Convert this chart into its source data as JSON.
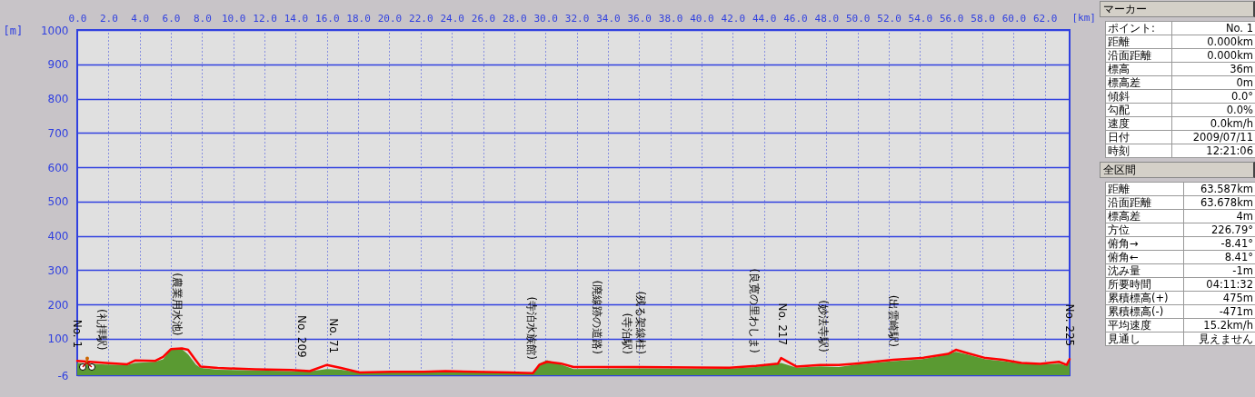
{
  "chart_data": [
    {
      "type": "area",
      "xlabel": "[km]",
      "ylabel": "[m]",
      "xlim": [
        0,
        63.587
      ],
      "ylim": [
        -6,
        1000
      ],
      "xticks": [
        {
          "value": 0,
          "label": "0.0"
        },
        {
          "value": 2,
          "label": "2.0"
        },
        {
          "value": 4,
          "label": "4.0"
        },
        {
          "value": 6,
          "label": "6.0"
        },
        {
          "value": 8,
          "label": "8.0"
        },
        {
          "value": 10,
          "label": "10.0"
        },
        {
          "value": 12,
          "label": "12.0"
        },
        {
          "value": 14,
          "label": "14.0"
        },
        {
          "value": 16,
          "label": "16.0"
        },
        {
          "value": 18,
          "label": "18.0"
        },
        {
          "value": 20,
          "label": "20.0"
        },
        {
          "value": 22,
          "label": "22.0"
        },
        {
          "value": 24,
          "label": "24.0"
        },
        {
          "value": 26,
          "label": "26.0"
        },
        {
          "value": 28,
          "label": "28.0"
        },
        {
          "value": 30,
          "label": "30.0"
        },
        {
          "value": 32,
          "label": "32.0"
        },
        {
          "value": 34,
          "label": "34.0"
        },
        {
          "value": 36,
          "label": "36.0"
        },
        {
          "value": 38,
          "label": "38.0"
        },
        {
          "value": 40,
          "label": "40.0"
        },
        {
          "value": 42,
          "label": "42.0"
        },
        {
          "value": 44,
          "label": "44.0"
        },
        {
          "value": 46,
          "label": "46.0"
        },
        {
          "value": 48,
          "label": "48.0"
        },
        {
          "value": 50,
          "label": "50.0"
        },
        {
          "value": 52,
          "label": "52.0"
        },
        {
          "value": 54,
          "label": "54.0"
        },
        {
          "value": 56,
          "label": "56.0"
        },
        {
          "value": 58,
          "label": "58.0"
        },
        {
          "value": 60,
          "label": "60.0"
        },
        {
          "value": 62,
          "label": "62.0"
        }
      ],
      "yticks": [
        -6,
        100,
        200,
        300,
        400,
        500,
        600,
        700,
        800,
        900,
        1000
      ],
      "grid": true,
      "x": [
        0,
        1.8,
        3.2,
        3.7,
        5.0,
        5.5,
        6.0,
        6.7,
        7.1,
        7.6,
        7.9,
        9.0,
        11.4,
        13.7,
        14.9,
        16.0,
        16.9,
        18.1,
        20.1,
        22.2,
        23.6,
        25.4,
        27.7,
        29.2,
        29.6,
        30.1,
        31.0,
        31.8,
        35.9,
        41.8,
        43.5,
        44.9,
        45.1,
        46.1,
        47.6,
        48.8,
        49.9,
        52.3,
        54.1,
        55.8,
        56.3,
        57.0,
        58.2,
        59.3,
        60.5,
        61.7,
        62.9,
        63.4,
        63.587
      ],
      "series": [
        {
          "type": "area",
          "color": "#5a9a32",
          "values": [
            30,
            25,
            24,
            30,
            33,
            40,
            70,
            70,
            55,
            25,
            15,
            10,
            8,
            6,
            5,
            12,
            10,
            2,
            3,
            4,
            5,
            3,
            2,
            0,
            28,
            38,
            25,
            12,
            14,
            13,
            18,
            28,
            30,
            16,
            20,
            18,
            25,
            35,
            40,
            55,
            62,
            55,
            40,
            35,
            28,
            25,
            28,
            22,
            38
          ]
        },
        {
          "type": "line",
          "color": "#ff0000",
          "values": [
            36,
            30,
            26,
            37,
            36,
            47,
            70,
            72,
            68,
            37,
            19,
            15,
            11,
            9,
            6,
            24,
            15,
            2,
            4,
            4,
            6,
            4,
            2,
            0,
            24,
            33,
            28,
            18,
            18,
            16,
            21,
            28,
            44,
            19,
            24,
            24,
            28,
            39,
            44,
            56,
            68,
            59,
            44,
            39,
            30,
            27,
            33,
            24,
            41
          ]
        }
      ],
      "annotations": [
        {
          "text": "No. 1",
          "x": 0,
          "y": 36
        },
        {
          "text": "(礼拝駅)",
          "x": 1.6,
          "y": 30
        },
        {
          "text": "(農業用水池)",
          "x": 6.4,
          "y": 72
        },
        {
          "text": "No. 209",
          "x": 14.4,
          "y": 8
        },
        {
          "text": "No. 71",
          "x": 16.4,
          "y": 20
        },
        {
          "text": "(寺泊水族館)",
          "x": 29.1,
          "y": 2
        },
        {
          "text": "(廃線跡の道路)",
          "x": 33.3,
          "y": 18
        },
        {
          "text": "(寺泊駅)",
          "x": 35.2,
          "y": 18
        },
        {
          "text": "(残る架線柱)",
          "x": 36.1,
          "y": 18
        },
        {
          "text": "(良寛の里わしま)",
          "x": 43.4,
          "y": 21
        },
        {
          "text": "No. 217",
          "x": 45.2,
          "y": 44
        },
        {
          "text": "(妙法寺駅)",
          "x": 47.8,
          "y": 24
        },
        {
          "text": "(出雲崎駅)",
          "x": 52.3,
          "y": 39
        },
        {
          "text": "No. 225",
          "x": 63.587,
          "y": 41
        }
      ]
    },
    {
      "type": "other",
      "title": "マーカー",
      "annotations": [
        "ポイント:",
        "No. 1",
        "距離",
        "0.000km",
        "沿面距離",
        "0.000km",
        "標高",
        "36m",
        "標高差",
        "0m",
        "傾斜",
        "0.0°",
        "勾配",
        "0.0%",
        "速度",
        "0.0km/h",
        "日付",
        "2009/07/11",
        "時刻",
        "12:21:06"
      ]
    },
    {
      "type": "other",
      "title": "全区間",
      "annotations": [
        "距離",
        "63.587km",
        "沿面距離",
        "63.678km",
        "標高差",
        "4m",
        "方位",
        "226.79°",
        "俯角→",
        "-8.41°",
        "俯角←",
        "8.41°",
        "沈み量",
        "-1m",
        "所要時間",
        "04:11:32",
        "累積標高(+)",
        "475m",
        "累積標高(-)",
        "-471m",
        "平均速度",
        "15.2km/h",
        "見通し",
        "見えません"
      ]
    }
  ]
}
